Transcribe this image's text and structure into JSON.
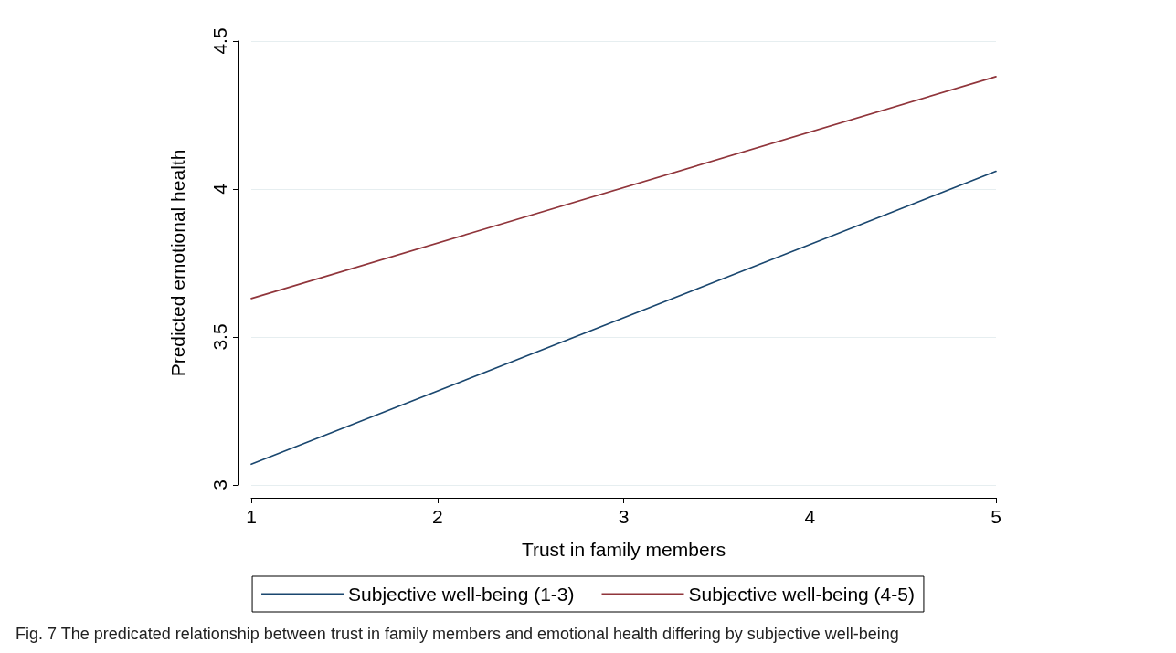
{
  "chart_data": {
    "type": "line",
    "xlabel": "Trust in family members",
    "ylabel": "Predicted emotional health",
    "x": [
      1,
      5
    ],
    "series": [
      {
        "name": "Subjective well-being (1-3)",
        "color": "#1a476f",
        "values": [
          3.07,
          4.06
        ]
      },
      {
        "name": "Subjective well-being (4-5)",
        "color": "#90353b",
        "values": [
          3.63,
          4.38
        ]
      }
    ],
    "xlim": [
      1,
      5
    ],
    "xticks": [
      1,
      2,
      3,
      4,
      5
    ],
    "ylim": [
      3,
      4.5
    ],
    "yticks": [
      3,
      3.5,
      4,
      4.5
    ],
    "grid": "y",
    "legend": "bottom",
    "marker": "none",
    "line_style": "solid",
    "annotations": [
      "Fig. 7 The predicated relationship between trust in family members and emotional health differing by subjective well-being"
    ]
  }
}
